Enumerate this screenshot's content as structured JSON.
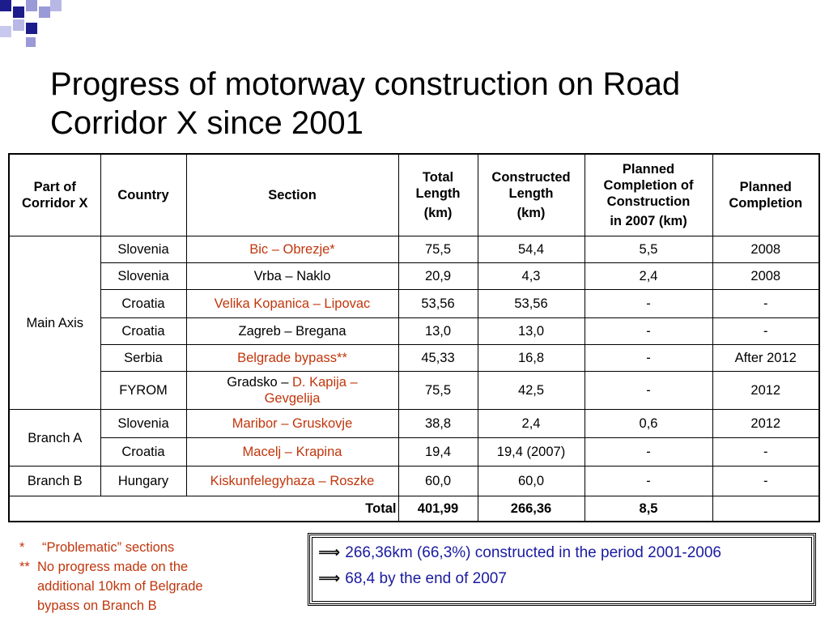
{
  "slide": {
    "title_line1": "Progress of motorway construction on Road",
    "title_line2": "Corridor X since 2001"
  },
  "table": {
    "headers": {
      "part": [
        "Part of",
        "Corridor X"
      ],
      "country": "Country",
      "section": "Section",
      "total_length": [
        "Total",
        "Length",
        "(km)"
      ],
      "constructed_length": [
        "Constructed",
        "Length",
        "(km)"
      ],
      "planned_2007": [
        "Planned",
        "Completion of",
        "Construction",
        "in 2007 (km)"
      ],
      "planned_completion": [
        "Planned",
        "Completion"
      ]
    },
    "groups": {
      "main_axis": "Main Axis",
      "branch_a": "Branch A",
      "branch_b": "Branch B"
    },
    "rows": [
      {
        "country": "Slovenia",
        "section": "Bic – Obrezje*",
        "total": "75,5",
        "constructed": "54,4",
        "planned2007": "5,5",
        "completion": "2008"
      },
      {
        "country": "Slovenia",
        "section": "Vrba – Naklo",
        "total": "20,9",
        "constructed": "4,3",
        "planned2007": "2,4",
        "completion": "2008"
      },
      {
        "country": "Croatia",
        "section": "Velika Kopanica – Lipovac",
        "total": "53,56",
        "constructed": "53,56",
        "planned2007": "-",
        "completion": "-"
      },
      {
        "country": "Croatia",
        "section": "Zagreb – Bregana",
        "total": "13,0",
        "constructed": "13,0",
        "planned2007": "-",
        "completion": "-"
      },
      {
        "country": "Serbia",
        "section": "Belgrade bypass**",
        "total": "45,33",
        "constructed": "16,8",
        "planned2007": "-",
        "completion": "After 2012"
      },
      {
        "country": "FYROM",
        "section_part1": "Gradsko – ",
        "section_part2": "D. Kapija –",
        "section_part3": "Gevgelija",
        "total": "75,5",
        "constructed": "42,5",
        "planned2007": "-",
        "completion": "2012"
      },
      {
        "country": "Slovenia",
        "section": "Maribor – Gruskovje",
        "total": "38,8",
        "constructed": "2,4",
        "planned2007": "0,6",
        "completion": "2012"
      },
      {
        "country": "Croatia",
        "section": "Macelj – Krapina",
        "total": "19,4",
        "constructed": "19,4 (2007)",
        "planned2007": "-",
        "completion": "-"
      },
      {
        "country": "Hungary",
        "section": "Kiskunfelegyhaza – Roszke",
        "total": "60,0",
        "constructed": "60,0",
        "planned2007": "-",
        "completion": "-"
      }
    ],
    "total_row": {
      "label": "Total",
      "total": "401,99",
      "constructed": "266,36",
      "planned2007": "8,5"
    }
  },
  "footnotes": {
    "note1_mark": "*",
    "note1_text": "“Problematic” sections",
    "note2_mark": "**",
    "note2_text": "No progress made on the additional 10km of Belgrade bypass on Branch B"
  },
  "summary": {
    "arrow": "⟹",
    "line1": "266,36km (66,3%) constructed in the period 2001-2006",
    "line2": "68,4 by the end of 2007"
  },
  "colors": {
    "deco_navy": "#1c1c8c",
    "deco_lilac": "#9a9ad8",
    "highlight_red": "#c0360c",
    "summary_blue": "#1a1aa0"
  }
}
